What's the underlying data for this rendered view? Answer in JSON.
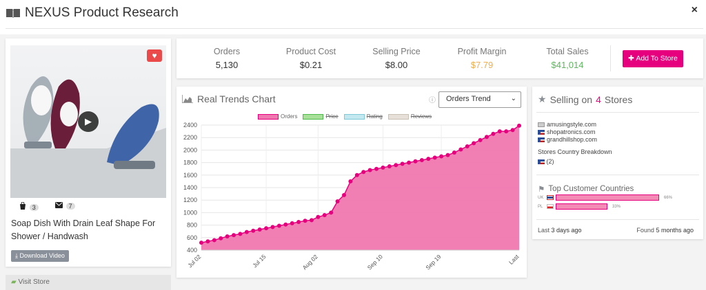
{
  "header": {
    "title": "NEXUS Product Research",
    "close": "×"
  },
  "product": {
    "name": "Soap Dish With Drain Leaf Shape For Shower / Handwash",
    "shopify_count": "3",
    "mail_count": "7",
    "download_label": "Download Video",
    "visit_label": "Visit Store"
  },
  "stats": [
    {
      "label": "Orders",
      "value": "5,130",
      "color": "#333333"
    },
    {
      "label": "Product Cost",
      "value": "$0.21",
      "color": "#333333"
    },
    {
      "label": "Selling Price",
      "value": "$8.00",
      "color": "#333333"
    },
    {
      "label": "Profit Margin",
      "value": "$7.79",
      "color": "#f0ad4e"
    },
    {
      "label": "Total Sales",
      "value": "$41,014",
      "color": "#5cb85c"
    }
  ],
  "add_button": "Add To Store",
  "chart_title": "Real Trends Chart",
  "trend_select": "Orders Trend",
  "legend": [
    {
      "label": "Orders",
      "color": "#e6007e",
      "fill": "#f078b0",
      "active": true
    },
    {
      "label": "Price",
      "color": "#4cbb4c",
      "fill": "#a8e09a",
      "active": false
    },
    {
      "label": "Rating",
      "color": "#7ec8d8",
      "fill": "#c4e8f0",
      "active": false
    },
    {
      "label": "Reviews",
      "color": "#c9c0b4",
      "fill": "#e6e0d8",
      "active": false
    }
  ],
  "chart_data": {
    "type": "area",
    "title": "Real Trends Chart",
    "series": [
      {
        "name": "Orders",
        "values": [
          520,
          540,
          560,
          590,
          620,
          640,
          660,
          690,
          710,
          730,
          750,
          770,
          790,
          810,
          830,
          850,
          870,
          880,
          930,
          960,
          1000,
          1180,
          1280,
          1500,
          1600,
          1650,
          1680,
          1700,
          1720,
          1740,
          1760,
          1780,
          1800,
          1820,
          1840,
          1860,
          1880,
          1900,
          1920,
          1960,
          2010,
          2060,
          2110,
          2160,
          2210,
          2260,
          2300,
          2300,
          2320,
          2390
        ]
      }
    ],
    "x_ticks": [
      "Jul 02",
      "Jul 15",
      "Aug 02",
      "Sep 10",
      "Sep 19",
      "Last"
    ],
    "x_tick_index": [
      0,
      10,
      18,
      28,
      37,
      49
    ],
    "ylim": [
      400,
      2400
    ],
    "y_ticks": [
      400,
      600,
      800,
      1000,
      1200,
      1400,
      1600,
      1800,
      2000,
      2200,
      2400
    ],
    "color": "#e6007e",
    "fill": "#f078b0"
  },
  "selling": {
    "title_prefix": "Selling on",
    "count": "4",
    "title_suffix": "Stores",
    "stores": [
      "amusingstyle.com",
      "shopatronics.com",
      "grandhillshop.com"
    ],
    "country_breakdown_label": "Stores Country Breakdown",
    "country_breakdown_value": "(2)",
    "top_countries_title": "Top Customer Countries",
    "countries": [
      {
        "code": "UK",
        "pct": 66,
        "label": "66%"
      },
      {
        "code": "PL",
        "pct": 33,
        "label": "33%"
      }
    ],
    "last_prefix": "Last",
    "last_value": "3 days ago",
    "found_prefix": "Found",
    "found_value": "5 months ago"
  }
}
